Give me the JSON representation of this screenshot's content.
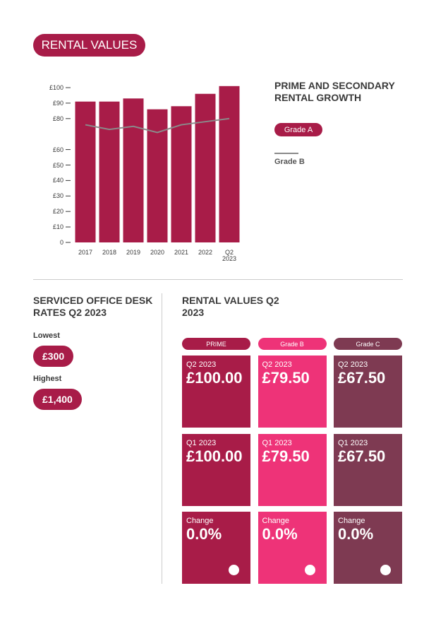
{
  "header": {
    "title": "RENTAL VALUES"
  },
  "chart_data": {
    "type": "bar",
    "title": "PRIME AND SECONDARY RENTAL GROWTH",
    "categories": [
      "2017",
      "2018",
      "2019",
      "2020",
      "2021",
      "2022",
      "Q2 2023"
    ],
    "series": [
      {
        "name": "Grade A",
        "color": "#a81c48",
        "type": "bar",
        "values": [
          91,
          91,
          93,
          86,
          88,
          96,
          101
        ]
      },
      {
        "name": "Grade B",
        "color": "#8a8a8a",
        "type": "line",
        "values": [
          76,
          73,
          75,
          71,
          76,
          78,
          80
        ]
      }
    ],
    "ylim": [
      0,
      100
    ],
    "yticks": [
      0,
      {
        "value": 10,
        "label": "£10"
      },
      {
        "value": 20,
        "label": "£20"
      },
      {
        "value": 30,
        "label": "£30"
      },
      {
        "value": 40,
        "label": "£40"
      },
      {
        "value": 50,
        "label": "£50"
      },
      {
        "value": 60,
        "label": "£60"
      },
      {
        "value": 80,
        "label": "£80"
      },
      {
        "value": 90,
        "label": "£90"
      },
      {
        "value": 100,
        "label": "£100"
      }
    ],
    "grid": false
  },
  "desk_rates": {
    "title": "SERVICED OFFICE DESK RATES Q2 2023",
    "items": [
      {
        "label": "Lowest",
        "value": "£300"
      },
      {
        "label": "Highest",
        "value": "£1,400"
      }
    ]
  },
  "table": {
    "title": "RENTAL VALUES Q2 2023",
    "columns": [
      {
        "name": "PRIME",
        "color": "#a81c48",
        "cells": [
          {
            "period": "Q2 2023",
            "value": "£100.00"
          },
          {
            "period": "Q1 2023",
            "value": "£100.00"
          },
          {
            "period": "Change",
            "value": "0.0%"
          }
        ]
      },
      {
        "name": "Grade B",
        "color": "#ee3378",
        "cells": [
          {
            "period": "Q2 2023",
            "value": "£79.50"
          },
          {
            "period": "Q1 2023",
            "value": "£79.50"
          },
          {
            "period": "Change",
            "value": "0.0%"
          }
        ]
      },
      {
        "name": "Grade C",
        "color": "#7e3a52",
        "cells": [
          {
            "period": "Q2 2023",
            "value": "£67.50"
          },
          {
            "period": "Q1 2023",
            "value": "£67.50"
          },
          {
            "period": "Change",
            "value": "0.0%"
          }
        ]
      }
    ]
  }
}
